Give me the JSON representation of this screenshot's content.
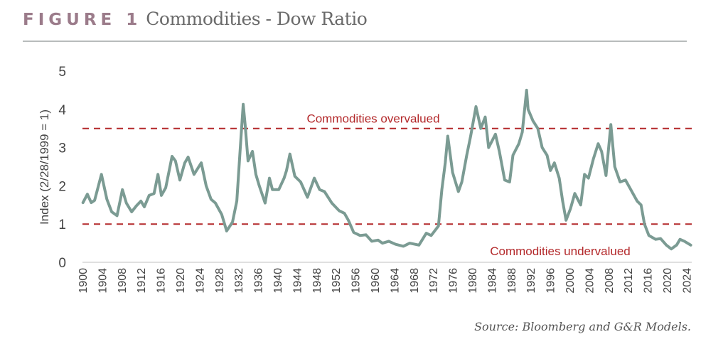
{
  "header": {
    "figure_label": "FIGURE 1",
    "title": "Commodities - Dow Ratio"
  },
  "source": "Source: Bloomberg and G&R Models.",
  "colors": {
    "line": "#7b9b93",
    "threshold": "#b3282a",
    "figure_label": "#9b7b8a"
  },
  "chart_data": {
    "type": "line",
    "title": "Commodities - Dow Ratio",
    "xlabel": "",
    "ylabel": "Index (2/28/1999 = 1)",
    "xlim": [
      1900,
      2025.4
    ],
    "ylim": [
      0,
      5
    ],
    "yticks": [
      "0",
      "1",
      "2",
      "3",
      "4",
      "5"
    ],
    "xticks": [
      "1900",
      "1904",
      "1908",
      "1912",
      "1916",
      "1920",
      "1924",
      "1928",
      "1932",
      "1936",
      "1940",
      "1944",
      "1948",
      "1952",
      "1956",
      "1960",
      "1964",
      "1968",
      "1972",
      "1976",
      "1980",
      "1984",
      "1988",
      "1992",
      "1996",
      "2000",
      "2004",
      "2008",
      "2012",
      "2016",
      "2020",
      "2024"
    ],
    "grid": false,
    "annotations": [
      {
        "text": "Commodities overvalued",
        "y": 3.5
      },
      {
        "text": "Commodities undervalued",
        "y": 1
      }
    ],
    "series": [
      {
        "name": "Commodities/Dow ratio",
        "x": [
          1900.1,
          1901.0,
          1901.8,
          1902.5,
          1903.9,
          1905.0,
          1906.0,
          1907.1,
          1908.2,
          1909.0,
          1910.1,
          1911.1,
          1912.0,
          1912.7,
          1913.7,
          1914.7,
          1915.5,
          1916.2,
          1917.1,
          1918.4,
          1919.1,
          1920.0,
          1921.0,
          1921.7,
          1922.9,
          1924.4,
          1925.4,
          1926.4,
          1927.3,
          1928.6,
          1929.6,
          1930.8,
          1931.7,
          1932.3,
          1933.0,
          1933.4,
          1934.0,
          1934.9,
          1935.6,
          1936.3,
          1937.5,
          1938.4,
          1939.0,
          1940.3,
          1941.4,
          1941.9,
          1942.6,
          1943.6,
          1944.8,
          1946.2,
          1947.6,
          1948.7,
          1949.7,
          1951.2,
          1952.7,
          1953.8,
          1954.6,
          1955.7,
          1957.0,
          1958.2,
          1959.4,
          1960.7,
          1961.6,
          1962.9,
          1964.3,
          1965.9,
          1967.2,
          1969.1,
          1970.6,
          1971.6,
          1973.1,
          1973.8,
          1974.5,
          1975.0,
          1976.0,
          1977.2,
          1977.9,
          1978.9,
          1979.7,
          1980.8,
          1981.8,
          1982.7,
          1983.4,
          1984.8,
          1985.6,
          1986.7,
          1987.7,
          1988.4,
          1989.6,
          1990.3,
          1991.2,
          1991.5,
          1992.5,
          1993.5,
          1994.4,
          1995.4,
          1996.1,
          1996.9,
          1997.9,
          1998.6,
          1999.3,
          2000.2,
          2001.1,
          2002.3,
          2003.1,
          2003.9,
          2004.9,
          2005.9,
          2006.6,
          2007.5,
          2008.5,
          2009.3,
          2010.4,
          2011.5,
          2012.6,
          2013.9,
          2014.7,
          2015.4,
          2016.3,
          2017.7,
          2018.7,
          2019.9,
          2020.9,
          2022.0,
          2022.7,
          2023.6,
          2024.9
        ],
        "y": [
          1.56,
          1.78,
          1.56,
          1.62,
          2.3,
          1.65,
          1.32,
          1.22,
          1.9,
          1.55,
          1.32,
          1.48,
          1.6,
          1.45,
          1.75,
          1.8,
          2.3,
          1.75,
          1.95,
          2.77,
          2.65,
          2.15,
          2.6,
          2.75,
          2.3,
          2.6,
          2.0,
          1.65,
          1.55,
          1.25,
          0.82,
          1.05,
          1.6,
          2.8,
          4.13,
          3.6,
          2.65,
          2.9,
          2.3,
          2.0,
          1.55,
          2.2,
          1.9,
          1.9,
          2.2,
          2.4,
          2.83,
          2.25,
          2.1,
          1.7,
          2.2,
          1.9,
          1.85,
          1.55,
          1.35,
          1.28,
          1.1,
          0.78,
          0.7,
          0.72,
          0.55,
          0.58,
          0.5,
          0.55,
          0.47,
          0.42,
          0.5,
          0.45,
          0.76,
          0.7,
          0.95,
          1.9,
          2.6,
          3.3,
          2.35,
          1.85,
          2.1,
          2.8,
          3.3,
          4.07,
          3.5,
          3.8,
          3.0,
          3.35,
          2.9,
          2.15,
          2.1,
          2.8,
          3.1,
          3.4,
          4.5,
          4.0,
          3.7,
          3.5,
          3.0,
          2.8,
          2.4,
          2.6,
          2.2,
          1.6,
          1.1,
          1.4,
          1.8,
          1.5,
          2.3,
          2.2,
          2.7,
          3.1,
          2.9,
          2.27,
          3.6,
          2.5,
          2.1,
          2.15,
          1.9,
          1.6,
          1.5,
          1.0,
          0.7,
          0.6,
          0.62,
          0.45,
          0.35,
          0.45,
          0.6,
          0.55,
          0.45
        ]
      }
    ]
  }
}
